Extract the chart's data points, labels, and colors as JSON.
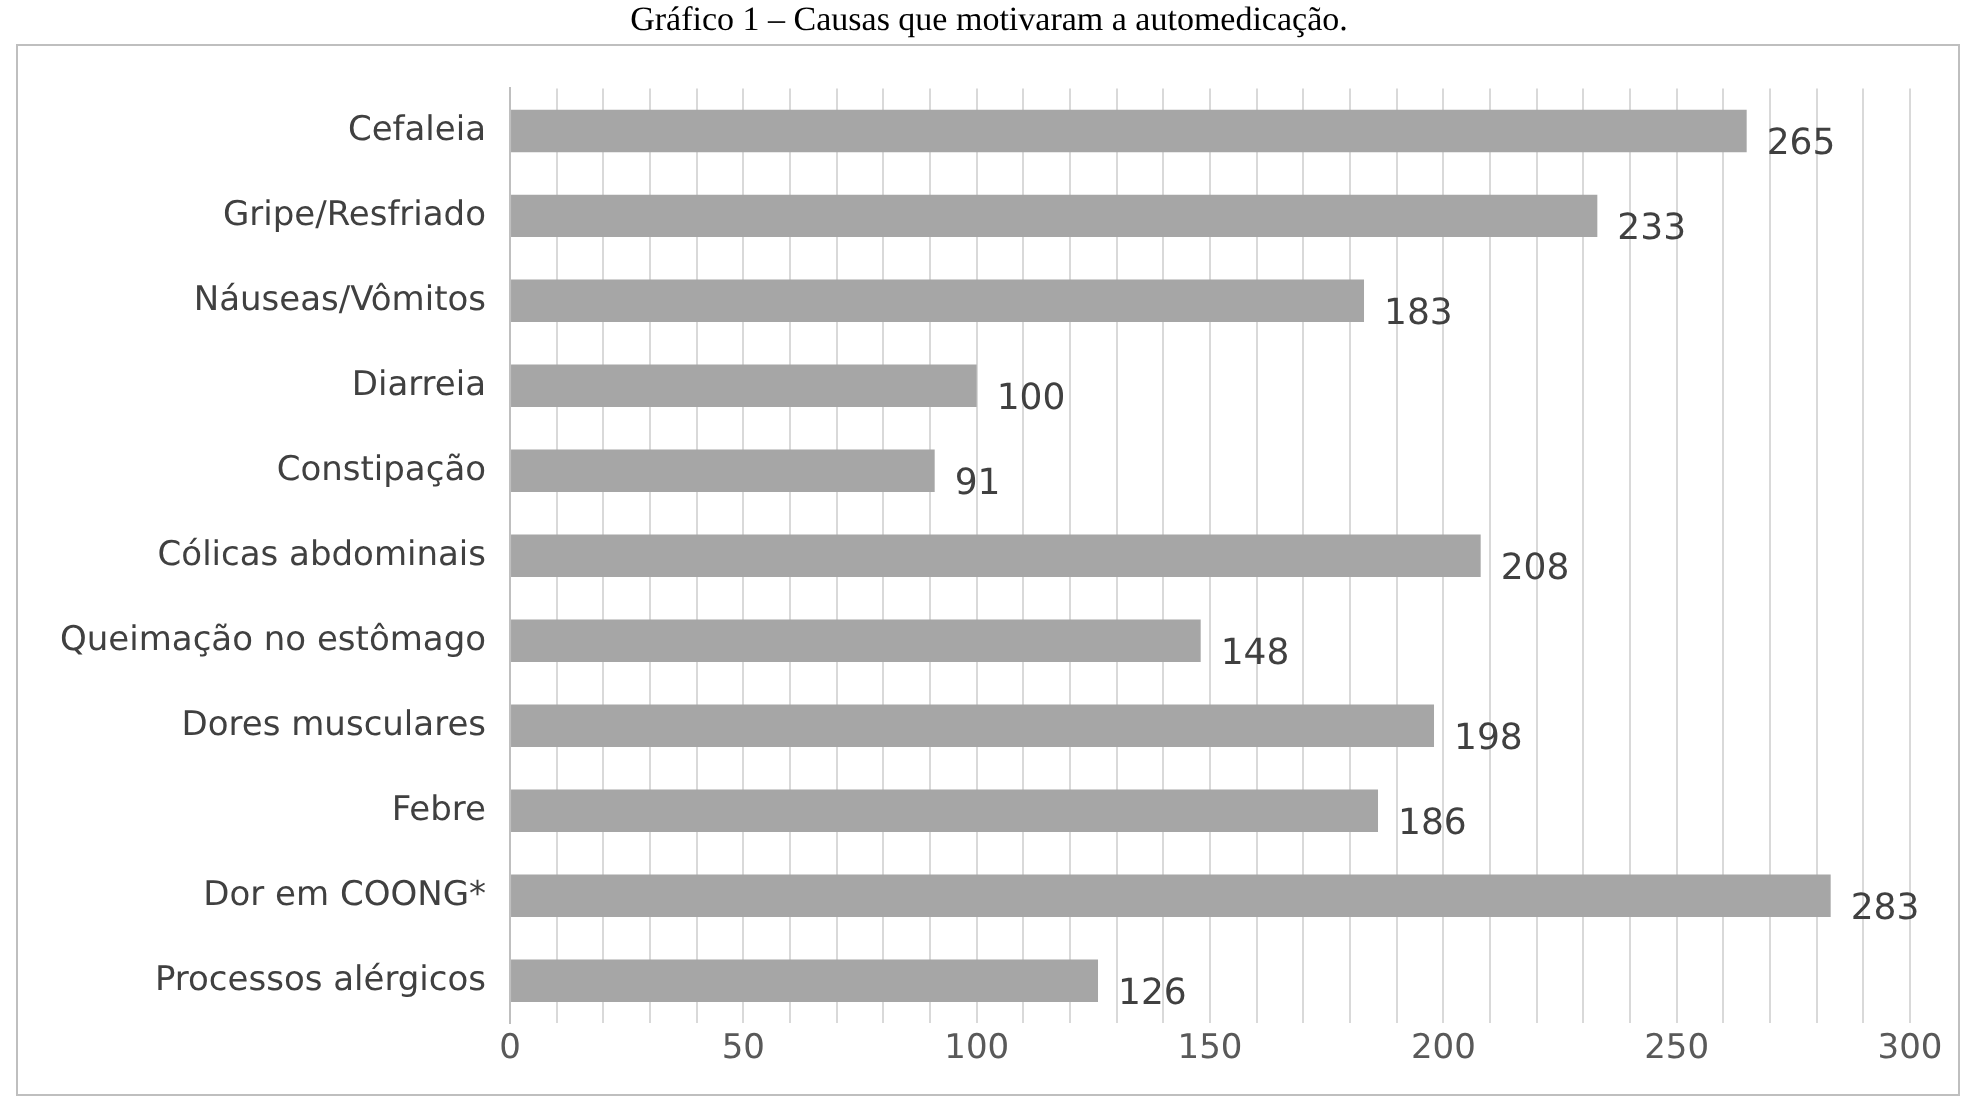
{
  "chart_data": {
    "type": "bar",
    "orientation": "horizontal",
    "title": "Gráfico 1 – Causas que motivaram a automedicação.",
    "categories": [
      "Cefaleia",
      "Gripe/Resfriado",
      "Náuseas/Vômitos",
      "Diarreia",
      "Constipação",
      "Cólicas abdominais",
      "Queimação no estômago",
      "Dores musculares",
      "Febre",
      "Dor em COONG*",
      "Processos alérgicos"
    ],
    "values": [
      265,
      233,
      183,
      100,
      91,
      208,
      148,
      198,
      186,
      283,
      126
    ],
    "color": "#a6a6a6",
    "data_labels": true,
    "grid": "x",
    "legend": false,
    "xlim": [
      0,
      300
    ],
    "xticks": [
      0,
      {
        "value": 10,
        "label": null
      },
      {
        "value": 20,
        "label": null
      },
      {
        "value": 30,
        "label": null
      },
      {
        "value": 40,
        "label": null
      },
      50,
      {
        "value": 60,
        "label": null
      },
      {
        "value": 70,
        "label": null
      },
      {
        "value": 80,
        "label": null
      },
      {
        "value": 90,
        "label": null
      },
      100,
      {
        "value": 110,
        "label": null
      },
      {
        "value": 120,
        "label": null
      },
      {
        "value": 130,
        "label": null
      },
      {
        "value": 140,
        "label": null
      },
      150,
      {
        "value": 160,
        "label": null
      },
      {
        "value": 170,
        "label": null
      },
      {
        "value": 180,
        "label": null
      },
      {
        "value": 190,
        "label": null
      },
      200,
      {
        "value": 210,
        "label": null
      },
      {
        "value": 220,
        "label": null
      },
      {
        "value": 230,
        "label": null
      },
      {
        "value": 240,
        "label": null
      },
      250,
      {
        "value": 260,
        "label": null
      },
      {
        "value": 270,
        "label": null
      },
      {
        "value": 280,
        "label": null
      },
      {
        "value": 290,
        "label": null
      },
      300
    ]
  }
}
